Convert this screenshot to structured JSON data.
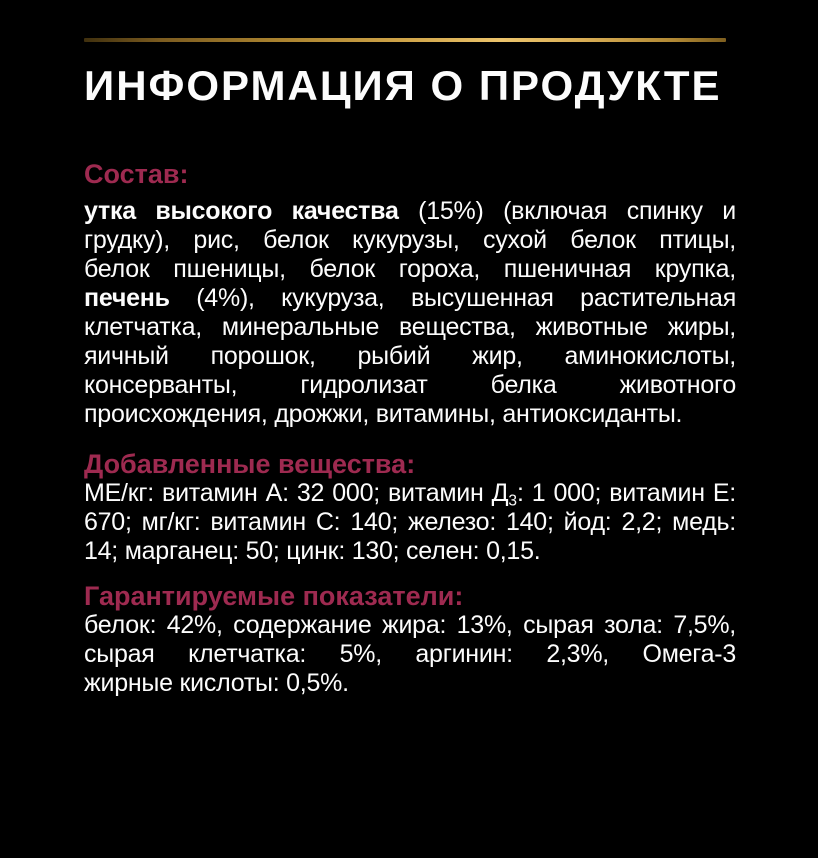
{
  "page": {
    "title": "ИНФОРМАЦИЯ О ПРОДУКТЕ",
    "colors": {
      "bg": "#000000",
      "text": "#fcfcfc",
      "heading": "#9e2a50",
      "gold_line": [
        "#40300e",
        "#a9822f",
        "#ecc46c",
        "#7f5f1f"
      ]
    }
  },
  "sections": [
    {
      "heading": "Состав:",
      "lines": [
        {
          "segments": [
            {
              "t": "утка высокого качества",
              "b": true
            },
            {
              "t": " (15%) (включая спинку и"
            }
          ]
        },
        {
          "segments": [
            {
              "t": "грудку), рис, белок кукурузы, сухой белок птицы,"
            }
          ]
        },
        {
          "segments": [
            {
              "t": "белок пшеницы, белок гороха, пшеничная крупка,"
            }
          ]
        },
        {
          "segments": [
            {
              "t": "печень",
              "b": true
            },
            {
              "t": " (4%), кукуруза, высушенная растительная"
            }
          ]
        },
        {
          "segments": [
            {
              "t": "клетчатка, минеральные вещества, животные жиры,"
            }
          ]
        },
        {
          "segments": [
            {
              "t": "яичный порошок, рыбий жир, аминокислоты,"
            }
          ]
        },
        {
          "segments": [
            {
              "t": "консерванты, гидролизат белка животного"
            }
          ]
        },
        {
          "segments": [
            {
              "t": "происхождения, дрожжи, витамины, антиоксиданты."
            }
          ],
          "last": true
        }
      ]
    },
    {
      "heading": "Добавленные вещества:",
      "lines": [
        {
          "segments": [
            {
              "t": "МЕ/кг: витамин А: 32 000; витамин Д"
            },
            {
              "t": "3",
              "sub": true
            },
            {
              "t": ": 1 000; витамин Е:"
            }
          ]
        },
        {
          "segments": [
            {
              "t": "670; мг/кг: витамин С: 140; железо: 140; йод: 2,2; медь:"
            }
          ]
        },
        {
          "segments": [
            {
              "t": "14; марганец: 50; цинк: 130; селен: 0,15."
            }
          ],
          "last": true
        }
      ]
    },
    {
      "heading": "Гарантируемые показатели:",
      "lines": [
        {
          "segments": [
            {
              "t": "белок: 42%, содержание жира: 13%, сырая зола: 7,5%,"
            }
          ]
        },
        {
          "segments": [
            {
              "t": "сырая клетчатка: 5%, аргинин: 2,3%, Омега-3"
            }
          ]
        },
        {
          "segments": [
            {
              "t": "жирные кислоты: 0,5%."
            }
          ],
          "last": true
        }
      ]
    }
  ]
}
